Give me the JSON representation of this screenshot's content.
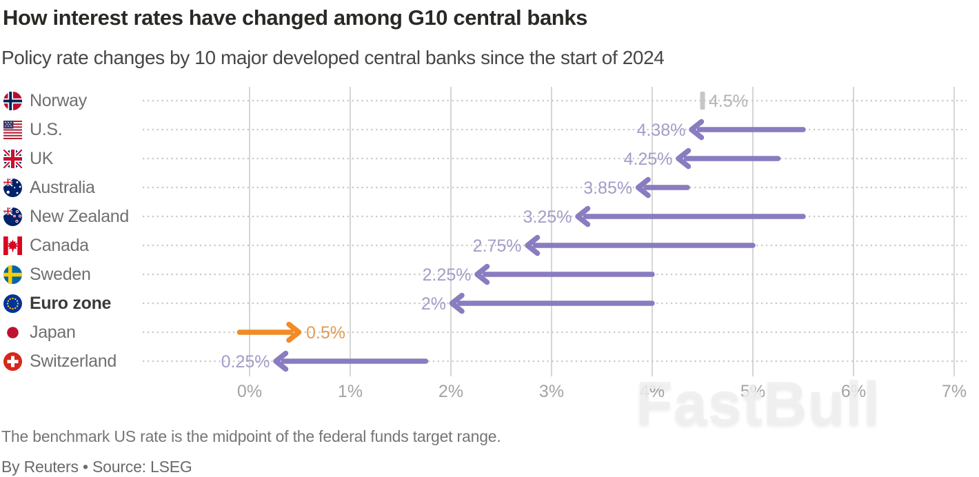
{
  "header": {
    "title": "How interest rates have changed among G10 central banks",
    "subtitle": "Policy rate changes by 10 major developed central banks since the start of 2024"
  },
  "chart_data": {
    "type": "arrow",
    "unit": "%",
    "x_axis": {
      "min": 0,
      "max": 7,
      "ticks": [
        "0%",
        "1%",
        "2%",
        "3%",
        "4%",
        "5%",
        "6%",
        "7%"
      ],
      "grid": true
    },
    "rows": [
      {
        "country": "Norway",
        "flag": "norway",
        "start": 4.5,
        "end": 4.5,
        "label": "4.5%",
        "changed": false,
        "direction": "none",
        "color": "gray",
        "bold": false
      },
      {
        "country": "U.S.",
        "flag": "us",
        "start": 5.5,
        "end": 4.38,
        "label": "4.38%",
        "changed": true,
        "direction": "down",
        "color": "purple",
        "bold": false
      },
      {
        "country": "UK",
        "flag": "uk",
        "start": 5.25,
        "end": 4.25,
        "label": "4.25%",
        "changed": true,
        "direction": "down",
        "color": "purple",
        "bold": false
      },
      {
        "country": "Australia",
        "flag": "australia",
        "start": 4.35,
        "end": 3.85,
        "label": "3.85%",
        "changed": true,
        "direction": "down",
        "color": "purple",
        "bold": false
      },
      {
        "country": "New Zealand",
        "flag": "new-zealand",
        "start": 5.5,
        "end": 3.25,
        "label": "3.25%",
        "changed": true,
        "direction": "down",
        "color": "purple",
        "bold": false
      },
      {
        "country": "Canada",
        "flag": "canada",
        "start": 5.0,
        "end": 2.75,
        "label": "2.75%",
        "changed": true,
        "direction": "down",
        "color": "purple",
        "bold": false
      },
      {
        "country": "Sweden",
        "flag": "sweden",
        "start": 4.0,
        "end": 2.25,
        "label": "2.25%",
        "changed": true,
        "direction": "down",
        "color": "purple",
        "bold": false
      },
      {
        "country": "Euro zone",
        "flag": "euro",
        "start": 4.0,
        "end": 2.0,
        "label": "2%",
        "changed": true,
        "direction": "down",
        "color": "purple",
        "bold": true
      },
      {
        "country": "Japan",
        "flag": "japan",
        "start": -0.1,
        "end": 0.5,
        "label": "0.5%",
        "changed": true,
        "direction": "up",
        "color": "orange",
        "bold": false
      },
      {
        "country": "Switzerland",
        "flag": "switzerland",
        "start": 1.75,
        "end": 0.25,
        "label": "0.25%",
        "changed": true,
        "direction": "down",
        "color": "purple",
        "bold": false
      }
    ]
  },
  "colors": {
    "arrow_purple": "#8a7cc0",
    "arrow_orange": "#f08b28",
    "label_purple": "#a49dc7",
    "label_orange": "#e59a55",
    "label_gray": "#b3b3b3",
    "tick_gray": "#c6c6c6",
    "gridline": "#d5d5d5",
    "leader_dots": "#c9c9c9",
    "axis_label": "#a3a3a3"
  },
  "watermark": {
    "text": "FastBull"
  },
  "footer": {
    "note": "The benchmark US rate is the midpoint of the federal funds target range.",
    "byline": "By Reuters • Source: LSEG"
  }
}
